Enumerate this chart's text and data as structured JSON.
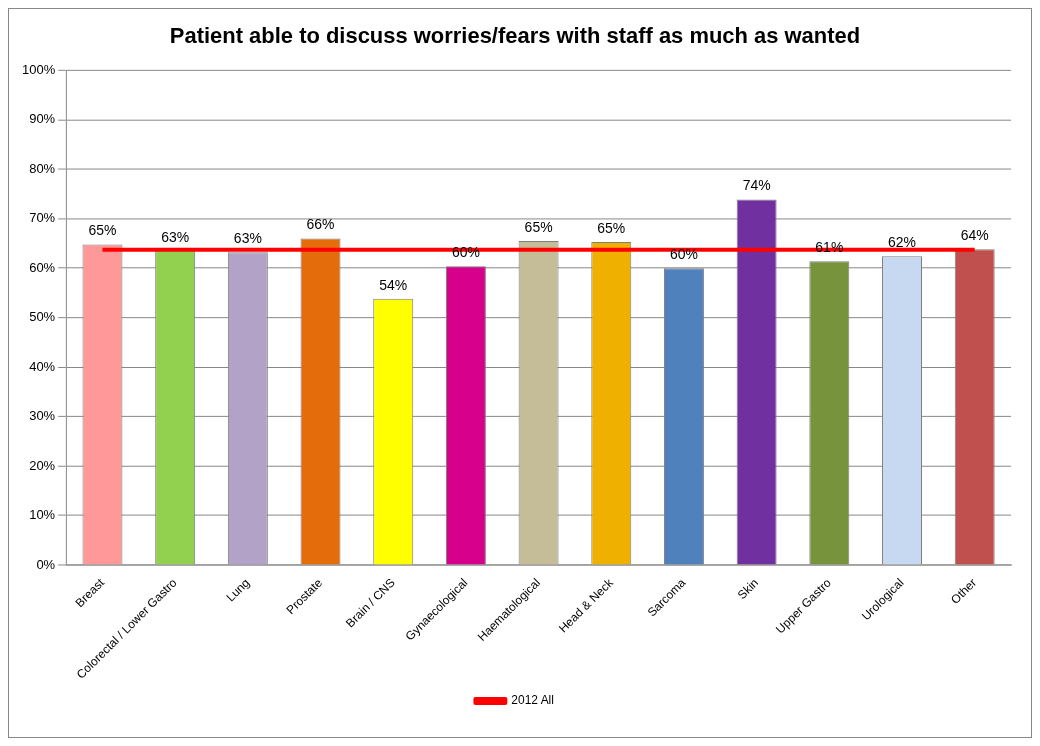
{
  "chart_data": {
    "type": "bar",
    "title": "Patient able to discuss worries/fears with staff as much as wanted",
    "categories": [
      "Breast",
      "Colorectal / Lower Gastro",
      "Lung",
      "Prostate",
      "Brain / CNS",
      "Gynaecological",
      "Haematological",
      "Head & Neck",
      "Sarcoma",
      "Skin",
      "Upper Gastro",
      "Urological",
      "Other"
    ],
    "series": [
      {
        "values": [
          64.8,
          63.5,
          63.2,
          66.0,
          53.8,
          60.4,
          65.5,
          65.3,
          60.0,
          73.9,
          61.4,
          62.4,
          63.8
        ],
        "colors": [
          "#ff9999",
          "#92d050",
          "#b3a2c7",
          "#e46c0a",
          "#ffff00",
          "#d6008c",
          "#c4bd97",
          "#f0b000",
          "#4f81bd",
          "#7030a0",
          "#77933c",
          "#c6d9f1",
          "#c0504d"
        ],
        "value_labels": [
          "65%",
          "63%",
          "63%",
          "66%",
          "54%",
          "60%",
          "65%",
          "65%",
          "60%",
          "74%",
          "61%",
          "62%",
          "64%"
        ]
      },
      {
        "type": "line",
        "name": "2012 All",
        "color": "#ff0000",
        "values": [
          63.7,
          63.7,
          63.7,
          63.7,
          63.7,
          63.7,
          63.7,
          63.7,
          63.7,
          63.7,
          63.7,
          63.7,
          63.7
        ]
      }
    ],
    "ylim": [
      0,
      100
    ],
    "yticks": [
      {
        "value": 0,
        "label": "0%"
      },
      {
        "value": 10,
        "label": "10%"
      },
      {
        "value": 20,
        "label": "20%"
      },
      {
        "value": 30,
        "label": "30%"
      },
      {
        "value": 40,
        "label": "40%"
      },
      {
        "value": 50,
        "label": "50%"
      },
      {
        "value": 60,
        "label": "60%"
      },
      {
        "value": 70,
        "label": "70%"
      },
      {
        "value": 80,
        "label": "80%"
      },
      {
        "value": 90,
        "label": "90%"
      },
      {
        "value": 100,
        "label": "100%"
      }
    ],
    "grid": "y",
    "legend": "bottom",
    "marker": "none",
    "line_style": "solid"
  }
}
